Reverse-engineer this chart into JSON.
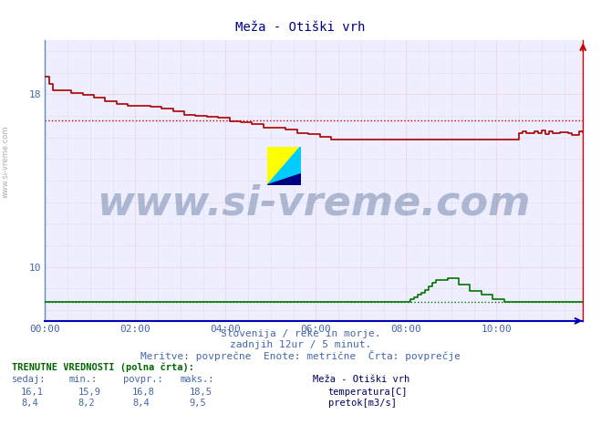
{
  "title": "Meža - Otiški vrh",
  "bg_color": "#ffffff",
  "plot_bg_color": "#eeeeff",
  "grid_major_color": "#ffcccc",
  "grid_minor_color": "#ccccdd",
  "xlabel": "",
  "ylabel": "",
  "xlim": [
    0,
    143
  ],
  "ylim": [
    7.5,
    20.5
  ],
  "yticks": [
    10,
    18
  ],
  "xtick_labels": [
    "00:00",
    "02:00",
    "04:00",
    "06:00",
    "08:00",
    "10:00"
  ],
  "xtick_positions": [
    0,
    24,
    48,
    72,
    96,
    120
  ],
  "temp_color": "#aa0000",
  "flow_color": "#007700",
  "avg_temp_color": "#cc0000",
  "avg_flow_color": "#007700",
  "avg_temp_line": 16.8,
  "avg_flow_line": 8.4,
  "spine_bottom_color": "#0000bb",
  "spine_right_color": "#cc0000",
  "spine_left_color": "#6688bb",
  "watermark_text": "www.si-vreme.com",
  "watermark_color": "#1a3a6b",
  "watermark_alpha": 0.3,
  "watermark_fontsize": 32,
  "footer_line1": "Slovenija / reke in morje.",
  "footer_line2": "zadnjih 12ur / 5 minut.",
  "footer_line3": "Meritve: povprečne  Enote: metrične  Črta: povprečje",
  "table_header": "TRENUTNE VREDNOSTI (polna črta):",
  "table_cols": [
    "sedaj:",
    "min.:",
    "povpr.:",
    "maks.:"
  ],
  "table_temp": [
    "16,1",
    "15,9",
    "16,8",
    "18,5"
  ],
  "table_flow": [
    "8,4",
    "8,2",
    "8,4",
    "9,5"
  ],
  "legend_title": "Meža - Otiški vrh",
  "legend_temp": "temperatura[C]",
  "legend_flow": "pretok[m3/s]",
  "temp_legend_color": "#cc0000",
  "flow_legend_color": "#00aa00",
  "n_points": 144
}
